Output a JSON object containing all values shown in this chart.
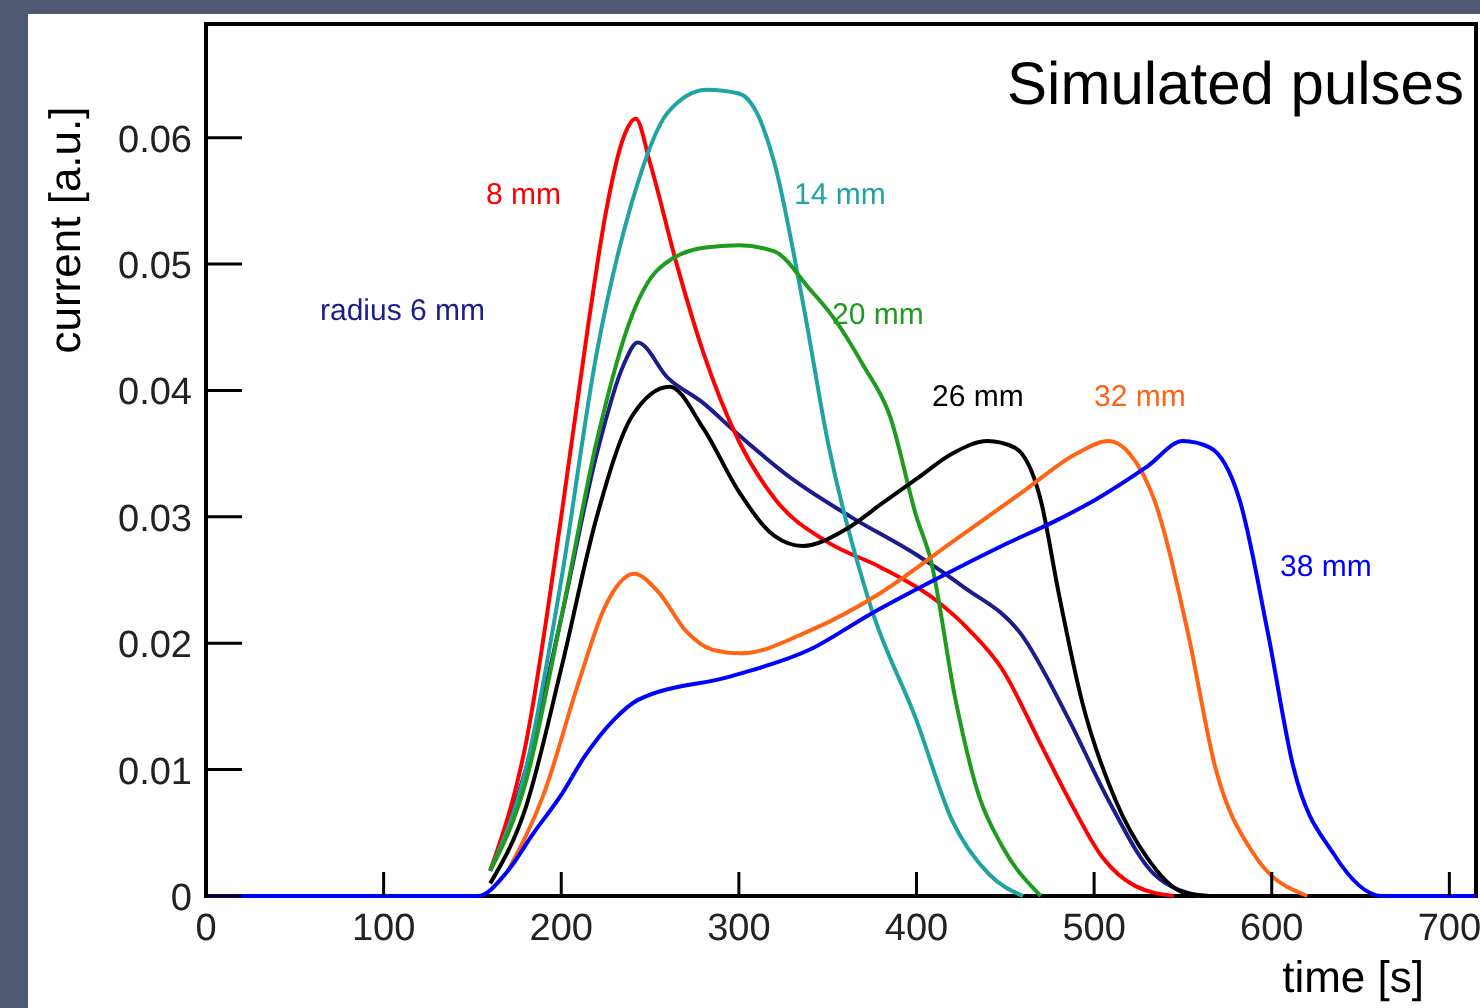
{
  "chart_data": {
    "type": "line",
    "title": "Simulated pulses",
    "xlabel": "time [s]",
    "ylabel": "current [a.u.]",
    "xlim": [
      0,
      715
    ],
    "ylim": [
      0,
      0.069
    ],
    "xticks": [
      0,
      100,
      200,
      300,
      400,
      500,
      600,
      700
    ],
    "yticks": [
      0,
      0.01,
      0.02,
      0.03,
      0.04,
      0.05,
      0.06
    ],
    "grid": false,
    "marker": "none",
    "line_style": "solid",
    "series": [
      {
        "name": "radius 6 mm",
        "color": "#1c1c8c",
        "x": [
          160,
          180,
          200,
          220,
          235,
          243,
          260,
          280,
          299,
          330,
          363,
          400,
          426,
          459,
          486,
          508,
          534,
          560
        ],
        "values": [
          0.002,
          0.01,
          0.022,
          0.035,
          0.042,
          0.0438,
          0.041,
          0.039,
          0.0366,
          0.033,
          0.03,
          0.027,
          0.0245,
          0.0207,
          0.0139,
          0.0076,
          0.0017,
          0
        ]
      },
      {
        "name": "8 mm",
        "color": "#ff0000",
        "x": [
          160,
          180,
          200,
          215,
          225,
          235,
          242,
          250,
          265,
          280,
          300,
          321,
          350,
          380,
          411,
          430,
          448,
          470,
          486,
          505,
          523,
          545
        ],
        "values": [
          0.002,
          0.012,
          0.03,
          0.045,
          0.054,
          0.06,
          0.0615,
          0.058,
          0.05,
          0.043,
          0.036,
          0.0313,
          0.028,
          0.026,
          0.0234,
          0.021,
          0.018,
          0.012,
          0.0076,
          0.003,
          0.0008,
          0
        ]
      },
      {
        "name": "14 mm",
        "color": "#1fa3a3",
        "x": [
          160,
          180,
          200,
          220,
          240,
          260,
          282,
          300,
          310,
          320,
          336,
          350,
          374,
          400,
          420,
          441,
          460
        ],
        "values": [
          0.002,
          0.01,
          0.025,
          0.043,
          0.055,
          0.062,
          0.0638,
          0.0635,
          0.062,
          0.058,
          0.047,
          0.036,
          0.023,
          0.0139,
          0.006,
          0.0017,
          0
        ]
      },
      {
        "name": "20 mm",
        "color": "#1f9c1f",
        "x": [
          160,
          180,
          200,
          220,
          240,
          254,
          280,
          300,
          320,
          340,
          352,
          370,
          385,
          400,
          408,
          422,
          435,
          448,
          470
        ],
        "values": [
          0.002,
          0.009,
          0.022,
          0.036,
          0.046,
          0.0495,
          0.0513,
          0.0515,
          0.051,
          0.048,
          0.046,
          0.042,
          0.038,
          0.03,
          0.0266,
          0.0155,
          0.008,
          0.004,
          0
        ]
      },
      {
        "name": "26 mm",
        "color": "#000000",
        "x": [
          160,
          180,
          200,
          220,
          240,
          261,
          280,
          300,
          320,
          336,
          360,
          380,
          400,
          420,
          440,
          455,
          470,
          480,
          493,
          512,
          530,
          550,
          565
        ],
        "values": [
          0.001,
          0.007,
          0.018,
          0.03,
          0.038,
          0.0403,
          0.037,
          0.032,
          0.0285,
          0.0277,
          0.029,
          0.031,
          0.033,
          0.035,
          0.036,
          0.0355,
          0.0313,
          0.024,
          0.0155,
          0.0076,
          0.003,
          0.0003,
          0
        ]
      },
      {
        "name": "32 mm",
        "color": "#ff6414",
        "x": [
          170,
          190,
          210,
          225,
          241,
          255,
          270,
          285,
          301,
          340,
          380,
          420,
          460,
          490,
          508,
          520,
          534,
          553,
          568,
          590,
          620
        ],
        "values": [
          0.002,
          0.008,
          0.017,
          0.023,
          0.0255,
          0.024,
          0.021,
          0.0195,
          0.0192,
          0.021,
          0.024,
          0.028,
          0.032,
          0.035,
          0.036,
          0.035,
          0.0313,
          0.0207,
          0.0103,
          0.0033,
          0
        ]
      },
      {
        "name": "38 mm",
        "color": "#0000ff",
        "x": [
          0,
          153,
          170,
          184,
          200,
          213,
          230,
          243,
          296,
          340,
          374,
          410,
          448,
          480,
          500,
          530,
          550,
          565,
          582,
          598,
          612,
          635,
          662,
          715
        ],
        "values": [
          0,
          0,
          0.002,
          0.0049,
          0.008,
          0.011,
          0.014,
          0.0155,
          0.0174,
          0.0195,
          0.0223,
          0.025,
          0.0277,
          0.0298,
          0.0313,
          0.034,
          0.036,
          0.0355,
          0.0313,
          0.0207,
          0.0103,
          0.0033,
          0,
          0
        ]
      }
    ]
  }
}
